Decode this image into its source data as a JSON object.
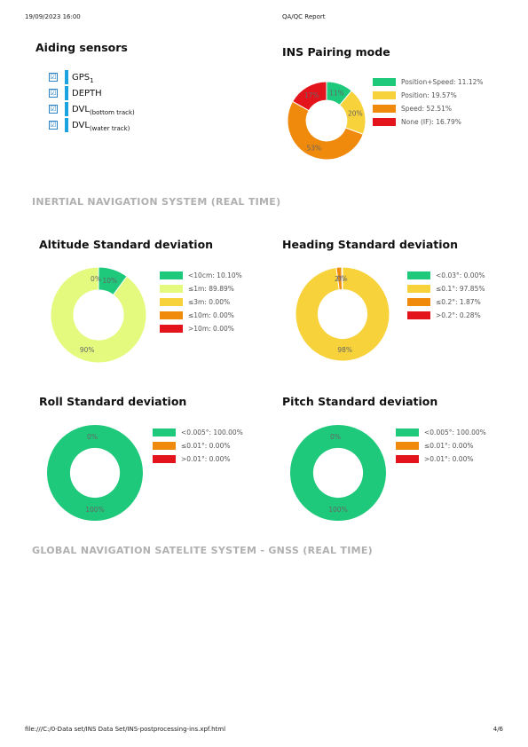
{
  "header": {
    "datetime": "19/09/2023 16:00",
    "report_title": "QA/QC Report"
  },
  "footer": {
    "path": "file:///C:/0-Data set/INS Data Set/INS-postprocessing-ins.xpf.html",
    "page": "4/6"
  },
  "aiding_sensors": {
    "title": "Aiding sensors",
    "items": [
      {
        "name": "GPS",
        "sub": "1",
        "checked": true
      },
      {
        "name": "DEPTH",
        "sub": "",
        "checked": true
      },
      {
        "name": "DVL",
        "sub": "(bottom track)",
        "checked": true
      },
      {
        "name": "DVL",
        "sub": "(water track)",
        "checked": true
      }
    ]
  },
  "sections": {
    "ins": "INERTIAL NAVIGATION SYSTEM (REAL TIME)",
    "gnss": "GLOBAL NAVIGATION SATELITE SYSTEM - GNSS (REAL TIME)"
  },
  "chart_data": [
    {
      "id": "ins-pairing",
      "type": "pie",
      "title": "INS Pairing mode",
      "categories": [
        "Position+Speed",
        "Position",
        "Speed",
        "None (IF)"
      ],
      "legend_labels": [
        "Position+Speed: 11.12%",
        "Position: 19.57%",
        "Speed: 52.51%",
        "None (IF): 16.79%"
      ],
      "values": [
        11.12,
        19.57,
        52.51,
        16.79
      ],
      "slice_labels": [
        "11%",
        "20%",
        "53%",
        "17%"
      ],
      "colors": [
        "#1ec97b",
        "#f7d23a",
        "#f08a0c",
        "#e3141c"
      ],
      "legend_position": "right"
    },
    {
      "id": "altitude-sd",
      "type": "pie",
      "title": "Altitude Standard deviation",
      "categories": [
        "<10cm",
        "≤1m",
        "≤3m",
        "≤10m",
        ">10m"
      ],
      "legend_labels": [
        "<10cm: 10.10%",
        "≤1m: 89.89%",
        "≤3m: 0.00%",
        "≤10m: 0.00%",
        ">10m: 0.00%"
      ],
      "values": [
        10.1,
        89.89,
        0.0,
        0.0,
        0.0
      ],
      "slice_labels": [
        "10%",
        "90%",
        "",
        "",
        ""
      ],
      "zero_label": "0%",
      "colors": [
        "#1ec97b",
        "#e4fa7f",
        "#f7d23a",
        "#f08a0c",
        "#e3141c"
      ],
      "legend_position": "right"
    },
    {
      "id": "heading-sd",
      "type": "pie",
      "title": "Heading Standard deviation",
      "categories": [
        "<0.03°",
        "≤0.1°",
        "≤0.2°",
        ">0.2°"
      ],
      "legend_labels": [
        "<0.03°: 0.00%",
        "≤0.1°: 97.85%",
        "≤0.2°: 1.87%",
        ">0.2°: 0.28%"
      ],
      "values": [
        0.0,
        97.85,
        1.87,
        0.28
      ],
      "slice_labels": [
        "",
        "98%",
        "2%",
        "0%"
      ],
      "colors": [
        "#1ec97b",
        "#f7d23a",
        "#f08a0c",
        "#e3141c"
      ],
      "legend_position": "right"
    },
    {
      "id": "roll-sd",
      "type": "pie",
      "title": "Roll Standard deviation",
      "categories": [
        "<0.005°",
        "≤0.01°",
        ">0.01°"
      ],
      "legend_labels": [
        "<0.005°: 100.00%",
        "≤0.01°: 0.00%",
        ">0.01°: 0.00%"
      ],
      "values": [
        100.0,
        0.0,
        0.0
      ],
      "slice_labels": [
        "100%",
        "",
        ""
      ],
      "zero_label": "0%",
      "colors": [
        "#1ec97b",
        "#f08a0c",
        "#e3141c"
      ],
      "legend_position": "right"
    },
    {
      "id": "pitch-sd",
      "type": "pie",
      "title": "Pitch Standard deviation",
      "categories": [
        "<0.005°",
        "≤0.01°",
        ">0.01°"
      ],
      "legend_labels": [
        "<0.005°: 100.00%",
        "≤0.01°: 0.00%",
        ">0.01°: 0.00%"
      ],
      "values": [
        100.0,
        0.0,
        0.0
      ],
      "slice_labels": [
        "100%",
        "",
        ""
      ],
      "zero_label": "0%",
      "colors": [
        "#1ec97b",
        "#f08a0c",
        "#e3141c"
      ],
      "legend_position": "right"
    }
  ]
}
